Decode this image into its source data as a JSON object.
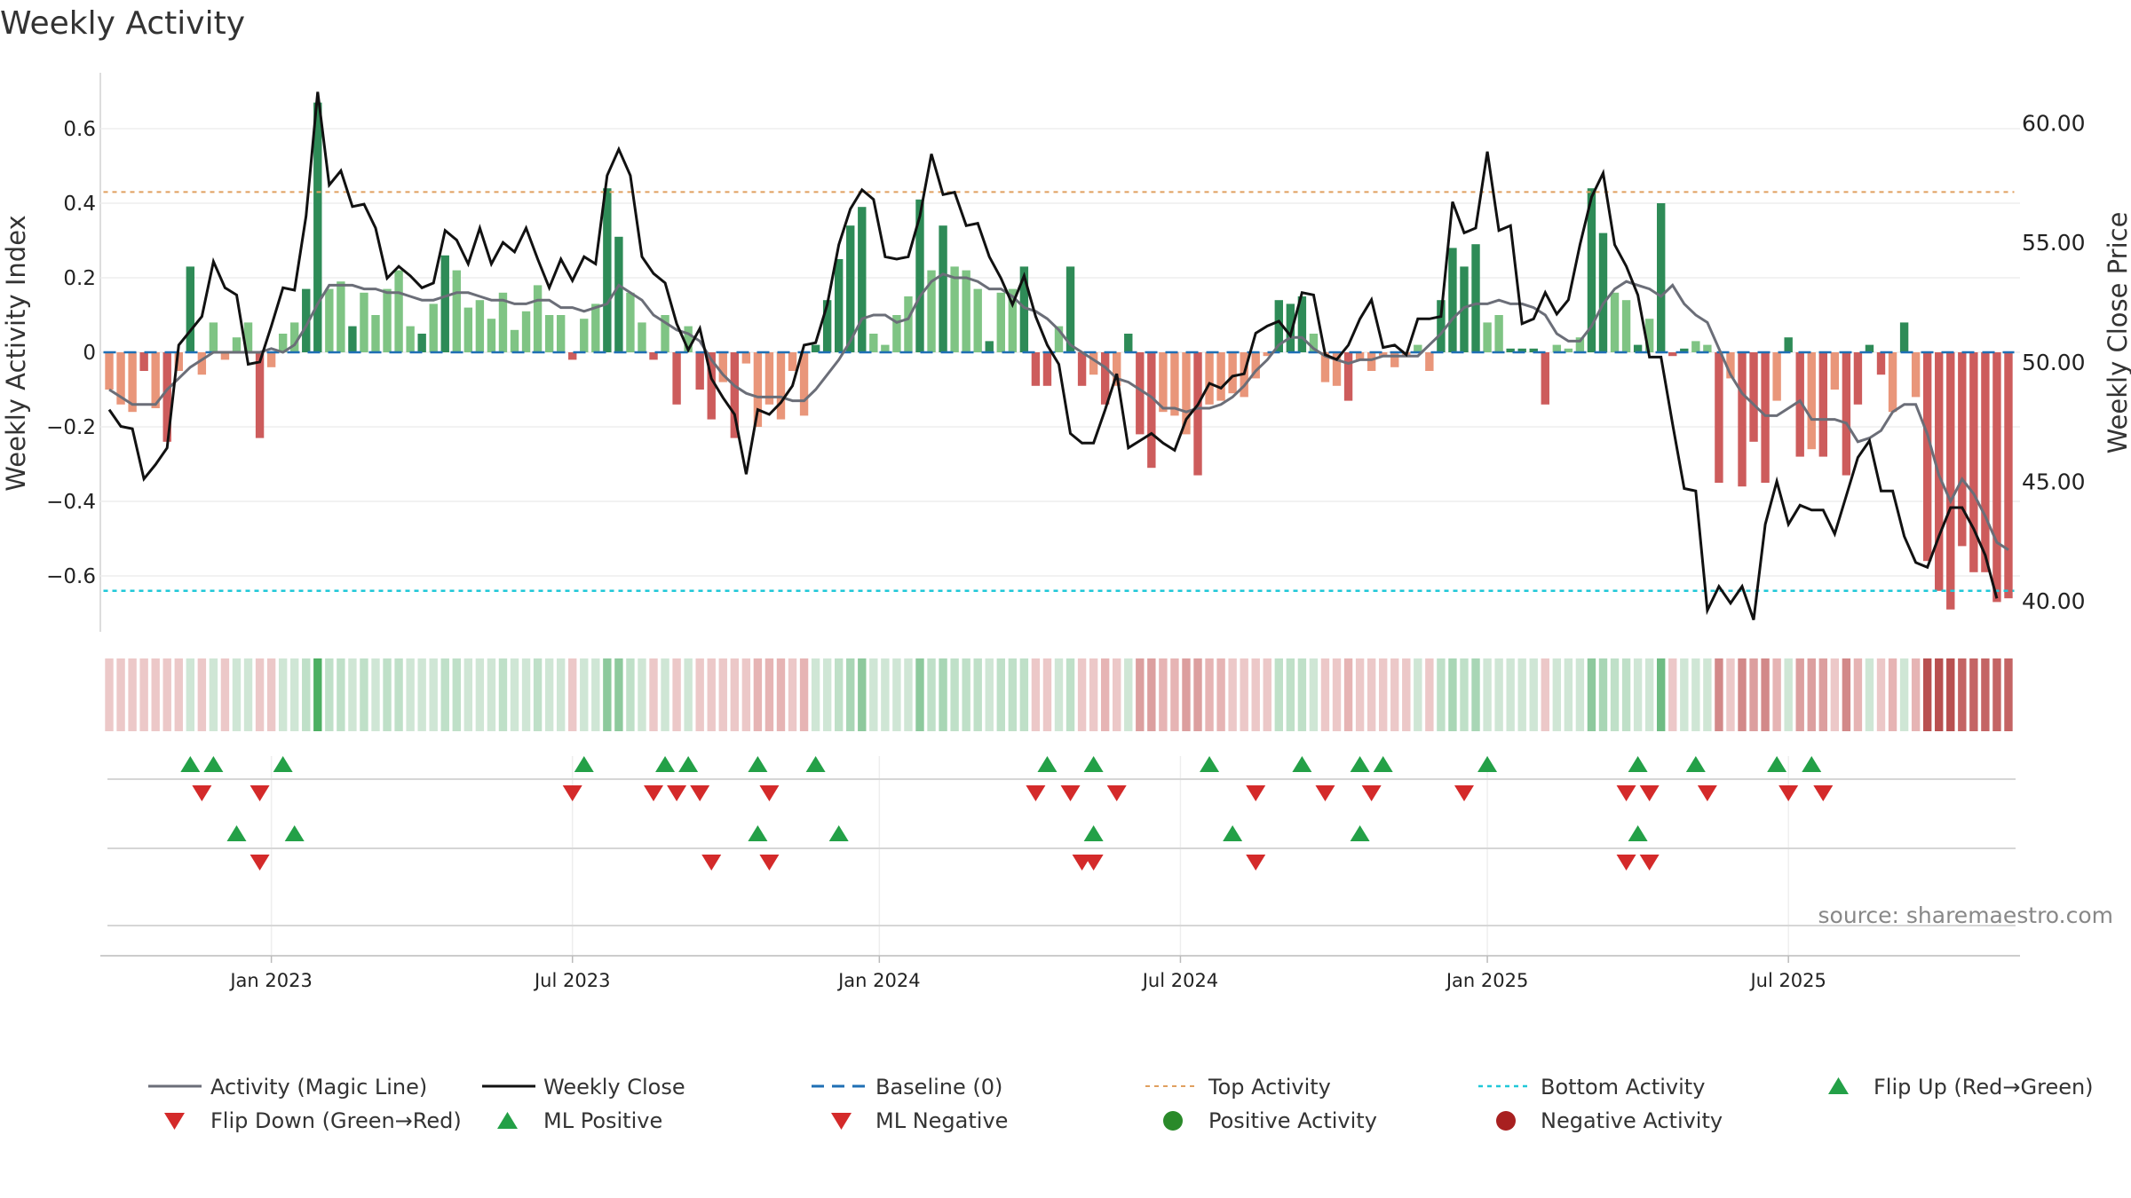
{
  "chart_data": {
    "type": "bar",
    "title": "Weekly Activity",
    "ylabel": "Weekly Activity Index",
    "y2label": "Weekly Close Price",
    "source": "source: sharemaestro.com",
    "ylim": [
      -0.75,
      0.75
    ],
    "y2lim": [
      38.7,
      62.1
    ],
    "yticks": [
      -0.6,
      -0.4,
      -0.2,
      0,
      0.2,
      0.4,
      0.6
    ],
    "ytick_labels": [
      "−0.6",
      "−0.4",
      "−0.2",
      "0",
      "0.2",
      "0.4",
      "0.6"
    ],
    "y2ticks": [
      40,
      45,
      50,
      55,
      60
    ],
    "y2tick_labels": [
      "40.00",
      "45.00",
      "50.00",
      "55.00",
      "60.00"
    ],
    "top_activity": 0.43,
    "bottom_activity": -0.64,
    "xticks": [
      {
        "label": "Jan 2023",
        "week": 14.5
      },
      {
        "label": "Jul 2023",
        "week": 40.5
      },
      {
        "label": "Jan 2024",
        "week": 67
      },
      {
        "label": "Jul 2024",
        "week": 93
      },
      {
        "label": "Jan 2025",
        "week": 119.5
      },
      {
        "label": "Jul 2025",
        "week": 145.5
      }
    ],
    "activity": [
      -0.1,
      -0.14,
      -0.16,
      -0.05,
      -0.15,
      -0.24,
      -0.05,
      0.23,
      -0.06,
      0.08,
      -0.02,
      0.04,
      0.08,
      -0.23,
      -0.04,
      0.05,
      0.08,
      0.17,
      0.67,
      0.17,
      0.19,
      0.07,
      0.16,
      0.1,
      0.17,
      0.22,
      0.07,
      0.05,
      0.13,
      0.26,
      0.22,
      0.12,
      0.14,
      0.09,
      0.16,
      0.06,
      0.11,
      0.18,
      0.1,
      0.1,
      -0.02,
      0.09,
      0.13,
      0.44,
      0.31,
      0.16,
      0.08,
      -0.02,
      0.1,
      -0.14,
      0.07,
      -0.1,
      -0.18,
      -0.08,
      -0.23,
      -0.03,
      -0.2,
      -0.14,
      -0.18,
      -0.05,
      -0.17,
      0.02,
      0.14,
      0.25,
      0.34,
      0.39,
      0.05,
      0.02,
      0.1,
      0.15,
      0.41,
      0.22,
      0.34,
      0.23,
      0.22,
      0.17,
      0.03,
      0.16,
      0.17,
      0.23,
      -0.09,
      -0.09,
      0.07,
      0.23,
      -0.09,
      -0.06,
      -0.14,
      -0.09,
      0.05,
      -0.22,
      -0.31,
      -0.16,
      -0.17,
      -0.22,
      -0.33,
      -0.14,
      -0.13,
      -0.11,
      -0.12,
      -0.07,
      -0.01,
      0.14,
      0.13,
      0.15,
      0.05,
      -0.08,
      -0.09,
      -0.13,
      -0.02,
      -0.05,
      -0.01,
      -0.04,
      -0.01,
      0.02,
      -0.05,
      0.14,
      0.28,
      0.23,
      0.29,
      0.08,
      0.1,
      0.01,
      0.01,
      0.01,
      -0.14,
      0.02,
      0.01,
      0.04,
      0.44,
      0.32,
      0.16,
      0.14,
      0.02,
      0.09,
      0.4,
      -0.01,
      0.01,
      0.03,
      0.02,
      -0.35,
      -0.07,
      -0.36,
      -0.24,
      -0.35,
      -0.13,
      0.04,
      -0.28,
      -0.26,
      -0.28,
      -0.1,
      -0.33,
      -0.14,
      0.02,
      -0.06,
      -0.16,
      0.08,
      -0.12,
      -0.56,
      -0.64,
      -0.69,
      -0.52,
      -0.59,
      -0.59,
      -0.67,
      -0.66
    ],
    "weekly_close": [
      48.0,
      47.3,
      47.2,
      45.1,
      45.7,
      46.4,
      50.7,
      51.3,
      51.9,
      54.2,
      53.1,
      52.8,
      49.9,
      50.0,
      51.5,
      53.1,
      53.0,
      56.1,
      61.3,
      57.4,
      58.0,
      56.5,
      56.6,
      55.6,
      53.5,
      54.0,
      53.6,
      53.1,
      53.3,
      55.5,
      55.1,
      54.1,
      55.6,
      54.1,
      55.0,
      54.6,
      55.6,
      54.3,
      53.1,
      54.3,
      53.4,
      54.4,
      54.1,
      57.8,
      58.9,
      57.8,
      54.4,
      53.7,
      53.3,
      51.6,
      50.5,
      51.4,
      49.3,
      48.5,
      47.8,
      45.3,
      48.0,
      47.8,
      48.3,
      49.0,
      50.7,
      50.8,
      52.4,
      54.9,
      56.4,
      57.2,
      56.8,
      54.4,
      54.3,
      54.4,
      56.1,
      58.7,
      57.0,
      57.1,
      55.7,
      55.8,
      54.4,
      53.5,
      52.4,
      53.6,
      51.9,
      50.7,
      49.9,
      47.0,
      46.6,
      46.6,
      48.0,
      49.5,
      46.4,
      46.7,
      47.0,
      46.6,
      46.3,
      47.6,
      48.2,
      49.1,
      48.9,
      49.4,
      49.5,
      51.2,
      51.5,
      51.7,
      51.1,
      52.9,
      52.8,
      50.3,
      50.1,
      50.7,
      51.8,
      52.6,
      50.6,
      50.7,
      50.3,
      51.8,
      51.8,
      51.9,
      56.7,
      55.4,
      55.6,
      58.8,
      55.5,
      55.7,
      51.6,
      51.8,
      52.9,
      52.0,
      52.6,
      54.9,
      56.9,
      57.9,
      54.9,
      54.0,
      52.8,
      50.2,
      50.2,
      47.4,
      44.7,
      44.6,
      39.6,
      40.6,
      39.9,
      40.6,
      39.2,
      43.2,
      45.0,
      43.2,
      44.0,
      43.8,
      43.8,
      42.8,
      44.4,
      46.0,
      46.7,
      44.6,
      44.6,
      42.7,
      41.6,
      41.4,
      42.7,
      43.9,
      43.9,
      43.0,
      41.9,
      40.1
    ],
    "magic_line": [
      -0.1,
      -0.12,
      -0.14,
      -0.14,
      -0.14,
      -0.1,
      -0.07,
      -0.04,
      -0.02,
      0.0,
      0.0,
      0.0,
      0.0,
      0.0,
      0.01,
      0.0,
      0.02,
      0.07,
      0.13,
      0.18,
      0.18,
      0.18,
      0.17,
      0.17,
      0.16,
      0.16,
      0.15,
      0.14,
      0.14,
      0.15,
      0.16,
      0.16,
      0.15,
      0.14,
      0.14,
      0.13,
      0.13,
      0.14,
      0.14,
      0.12,
      0.12,
      0.11,
      0.12,
      0.13,
      0.18,
      0.16,
      0.14,
      0.1,
      0.08,
      0.06,
      0.05,
      0.03,
      -0.02,
      -0.06,
      -0.09,
      -0.11,
      -0.12,
      -0.12,
      -0.12,
      -0.13,
      -0.13,
      -0.1,
      -0.06,
      -0.02,
      0.03,
      0.09,
      0.1,
      0.1,
      0.08,
      0.09,
      0.15,
      0.19,
      0.21,
      0.2,
      0.2,
      0.19,
      0.17,
      0.17,
      0.15,
      0.12,
      0.11,
      0.09,
      0.06,
      0.02,
      0.0,
      -0.02,
      -0.04,
      -0.07,
      -0.08,
      -0.1,
      -0.12,
      -0.15,
      -0.15,
      -0.16,
      -0.15,
      -0.15,
      -0.14,
      -0.12,
      -0.09,
      -0.05,
      -0.02,
      0.02,
      0.04,
      0.04,
      0.01,
      -0.01,
      -0.02,
      -0.03,
      -0.02,
      -0.02,
      -0.01,
      -0.01,
      -0.01,
      -0.01,
      0.02,
      0.05,
      0.09,
      0.12,
      0.13,
      0.13,
      0.14,
      0.13,
      0.13,
      0.12,
      0.1,
      0.05,
      0.03,
      0.03,
      0.07,
      0.13,
      0.17,
      0.19,
      0.18,
      0.17,
      0.15,
      0.18,
      0.13,
      0.1,
      0.08,
      0.01,
      -0.06,
      -0.11,
      -0.14,
      -0.17,
      -0.17,
      -0.15,
      -0.13,
      -0.18,
      -0.18,
      -0.18,
      -0.19,
      -0.24,
      -0.23,
      -0.21,
      -0.16,
      -0.14,
      -0.14,
      -0.22,
      -0.33,
      -0.4,
      -0.34,
      -0.38,
      -0.44,
      -0.51,
      -0.53
    ],
    "heat_colors": [
      "#ecc8c8",
      "#ecc8c8",
      "#ecc8c8",
      "#ecc8c8",
      "#ecc8c8",
      "#ecc8c8",
      "#ecc8c8",
      "#cfe6d5",
      "#ecc8c8",
      "#cfe6d5",
      "#ecc8c8",
      "#cfe6d5",
      "#cfe6d5",
      "#ecc8c8",
      "#ecc8c8",
      "#cfe6d5",
      "#cfe6d5",
      "#bfe0c8",
      "#4caf62",
      "#bfe0c8",
      "#bfe0c8",
      "#cfe6d5",
      "#bfe0c8",
      "#cfe6d5",
      "#bfe0c8",
      "#bfe0c8",
      "#cfe6d5",
      "#cfe6d5",
      "#cfe6d5",
      "#bfe0c8",
      "#bfe0c8",
      "#cfe6d5",
      "#cfe6d5",
      "#cfe6d5",
      "#bfe0c8",
      "#cfe6d5",
      "#cfe6d5",
      "#bfe0c8",
      "#cfe6d5",
      "#cfe6d5",
      "#ecc8c8",
      "#cfe6d5",
      "#cfe6d5",
      "#8dc99d",
      "#8dc99d",
      "#bfe0c8",
      "#cfe6d5",
      "#ecc8c8",
      "#cfe6d5",
      "#ecc8c8",
      "#cfe6d5",
      "#ecc8c8",
      "#ecc8c8",
      "#ecc8c8",
      "#ecc8c8",
      "#ecc8c8",
      "#e6b4b4",
      "#e6b4b4",
      "#e6b4b4",
      "#ecc8c8",
      "#e6b4b4",
      "#cfe6d5",
      "#cfe6d5",
      "#bfe0c8",
      "#a8d6b5",
      "#8dc99d",
      "#cfe6d5",
      "#cfe6d5",
      "#cfe6d5",
      "#cfe6d5",
      "#8dc99d",
      "#bfe0c8",
      "#a8d6b5",
      "#bfe0c8",
      "#bfe0c8",
      "#bfe0c8",
      "#cfe6d5",
      "#bfe0c8",
      "#bfe0c8",
      "#bfe0c8",
      "#ecc8c8",
      "#ecc8c8",
      "#cfe6d5",
      "#bfe0c8",
      "#ecc8c8",
      "#ecc8c8",
      "#e6b4b4",
      "#ecc8c8",
      "#cfe6d5",
      "#dc9f9f",
      "#dc9f9f",
      "#e6b4b4",
      "#e6b4b4",
      "#dc9f9f",
      "#dc9f9f",
      "#e6b4b4",
      "#e6b4b4",
      "#ecc8c8",
      "#ecc8c8",
      "#ecc8c8",
      "#ecc8c8",
      "#bfe0c8",
      "#bfe0c8",
      "#bfe0c8",
      "#cfe6d5",
      "#ecc8c8",
      "#ecc8c8",
      "#e6b4b4",
      "#ecc8c8",
      "#ecc8c8",
      "#ecc8c8",
      "#ecc8c8",
      "#ecc8c8",
      "#cfe6d5",
      "#ecc8c8",
      "#bfe0c8",
      "#a8d6b5",
      "#bfe0c8",
      "#a8d6b5",
      "#cfe6d5",
      "#cfe6d5",
      "#cfe6d5",
      "#cfe6d5",
      "#cfe6d5",
      "#ecc8c8",
      "#cfe6d5",
      "#cfe6d5",
      "#cfe6d5",
      "#8dc99d",
      "#a8d6b5",
      "#bfe0c8",
      "#bfe0c8",
      "#cfe6d5",
      "#cfe6d5",
      "#6fbc83",
      "#ecc8c8",
      "#cfe6d5",
      "#cfe6d5",
      "#cfe6d5",
      "#d28989",
      "#ecc8c8",
      "#d28989",
      "#dc9f9f",
      "#d28989",
      "#e6b4b4",
      "#cfe6d5",
      "#dc9f9f",
      "#dc9f9f",
      "#dc9f9f",
      "#ecc8c8",
      "#d28989",
      "#e6b4b4",
      "#cfe6d5",
      "#ecc8c8",
      "#e6b4b4",
      "#cfe6d5",
      "#e6b4b4",
      "#b85050",
      "#b85050",
      "#b85050",
      "#c46464",
      "#c46464",
      "#c46464",
      "#c46464",
      "#c46464"
    ],
    "flip_up": [
      7,
      9,
      15,
      41,
      48,
      50,
      56,
      61,
      81,
      85,
      95,
      103,
      108,
      110,
      119,
      132,
      137,
      144,
      147
    ],
    "flip_down": [
      8,
      13,
      40,
      47,
      49,
      51,
      57,
      80,
      83,
      87,
      99,
      105,
      109,
      117,
      131,
      133,
      138,
      145,
      148
    ],
    "ml_positive": [
      11,
      16,
      56,
      63,
      85,
      97,
      108,
      132
    ],
    "ml_negative": [
      13,
      52,
      57,
      84,
      85,
      99,
      131,
      133
    ]
  },
  "legend": {
    "magic": "Activity (Magic Line)",
    "close": "Weekly Close",
    "baseline": "Baseline (0)",
    "top": "Top Activity",
    "bottom": "Bottom Activity",
    "flip_up": "Flip Up (Red→Green)",
    "flip_down": "Flip Down (Green→Red)",
    "ml_pos": "ML Positive",
    "ml_neg": "ML Negative",
    "pos": "Positive Activity",
    "neg": "Negative Activity"
  },
  "colors": {
    "bar_pos_strong": "#2e8b57",
    "bar_pos_light": "#7fc484",
    "bar_neg_strong": "#cd5c5c",
    "bar_neg_light": "#e9967a",
    "close_line": "#111111",
    "magic_line": "#6b6e78",
    "baseline": "#1f6fb4",
    "top_line": "#e0a060",
    "bottom_line": "#20c8d8",
    "up_marker": "#23a047",
    "down_marker": "#d42a2a",
    "pos_dot": "#2a8a2a",
    "neg_dot": "#a82020"
  }
}
